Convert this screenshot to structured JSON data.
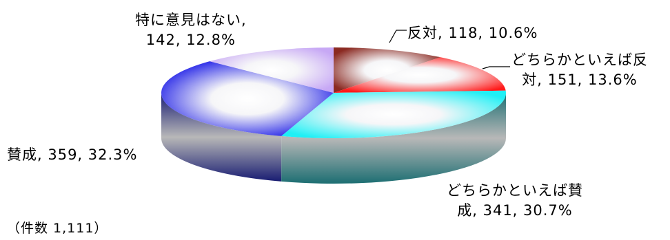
{
  "chart_data": {
    "type": "pie",
    "categories": [
      "反対",
      "どちらかといえば反対",
      "どちらかといえば賛成",
      "賛成",
      "特に意見はない"
    ],
    "values": [
      118,
      151,
      341,
      359,
      142
    ],
    "percents": [
      10.6,
      13.6,
      30.7,
      32.3,
      12.8
    ],
    "colors": [
      "#8B2A22",
      "#FF1A1A",
      "#1FF0F5",
      "#1010E6",
      "#C7A8F5"
    ],
    "side_colors": [
      "#5E2020",
      "#9E2E2E",
      "#1C6E72",
      "#181C72",
      "#6A5888"
    ],
    "note": "（件数 1,111）"
  },
  "labels": {
    "hantai_l1": "反対, 118, 10.6%",
    "dochira_hantai_l1": "どちらかといえば反",
    "dochira_hantai_l2": "対, 151, 13.6%",
    "dochira_sansei_l1": "どちらかといえば賛",
    "dochira_sansei_l2": "成, 341, 30.7%",
    "sansei_l1": "賛成, 359, 32.3%",
    "tokuni_l1": "特に意見はない,",
    "tokuni_l2": "142, 12.8%"
  }
}
